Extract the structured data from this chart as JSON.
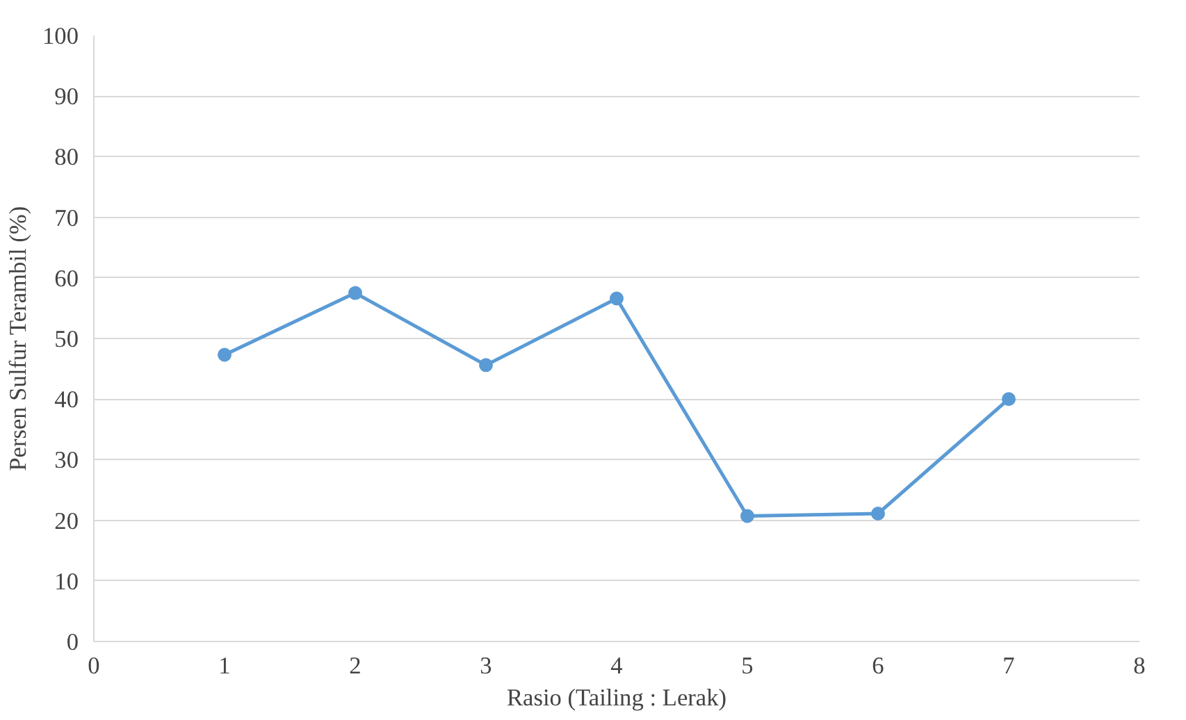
{
  "chart_data": {
    "type": "line",
    "xlabel": "Rasio (Tailing : Lerak)",
    "ylabel": "Persen Sulfur Terambil (%)",
    "x": [
      1,
      2,
      3,
      4,
      5,
      6,
      7
    ],
    "series": [
      {
        "color": "#5b9bd5",
        "values": [
          47.3,
          57.5,
          45.6,
          56.6,
          20.7,
          21.1,
          40.0
        ]
      }
    ],
    "xlim": [
      0,
      8
    ],
    "xticks": [
      0,
      1,
      2,
      3,
      4,
      5,
      6,
      7,
      8
    ],
    "ylim": [
      0,
      100
    ],
    "yticks": [
      0,
      10,
      20,
      30,
      40,
      50,
      60,
      70,
      80,
      90,
      100
    ],
    "grid": "y",
    "marker": "circle",
    "line_style": "solid"
  }
}
